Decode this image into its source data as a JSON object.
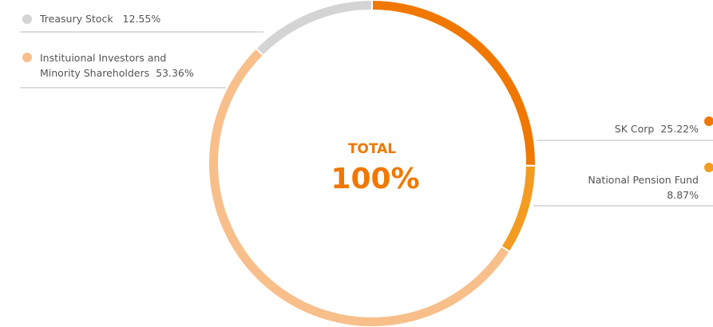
{
  "chart_data": {
    "type": "pie",
    "center_title": "TOTAL",
    "center_value": "100%",
    "categories": [
      "SK Corp",
      "National Pension Fund",
      "Instituional Investors and Minority Shareholders",
      "Treasury Stock"
    ],
    "values": [
      25.22,
      8.87,
      53.36,
      12.55
    ],
    "value_labels": [
      "25.22%",
      "8.87%",
      "53.36%",
      "12.55%"
    ],
    "colors": [
      "#f07800",
      "#f39c21",
      "#f8bf8a",
      "#d4d4d4"
    ]
  }
}
